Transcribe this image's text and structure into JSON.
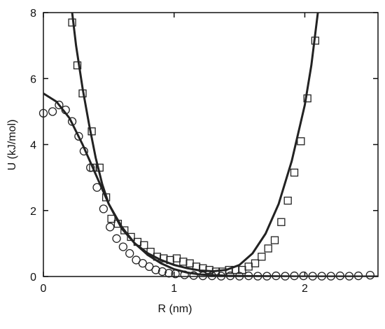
{
  "chart_data": {
    "type": "scatter",
    "xlabel": "R (nm)",
    "ylabel": "U  (kJ/mol)",
    "xlim": [
      0,
      2.56
    ],
    "ylim": [
      0,
      8
    ],
    "xticks": [
      0,
      1,
      2
    ],
    "yticks": [
      0,
      2,
      4,
      6,
      8
    ],
    "series": [
      {
        "kind": "scatter",
        "marker": "square",
        "color": "#222222",
        "x": [
          0.22,
          0.26,
          0.3,
          0.37,
          0.38,
          0.43,
          0.48,
          0.52,
          0.57,
          0.62,
          0.67,
          0.72,
          0.77,
          0.82,
          0.87,
          0.92,
          0.97,
          1.02,
          1.07,
          1.12,
          1.17,
          1.22,
          1.27,
          1.32,
          1.37,
          1.42,
          1.47,
          1.52,
          1.57,
          1.62,
          1.67,
          1.72,
          1.77,
          1.82,
          1.87,
          1.92,
          1.97,
          2.02,
          2.08
        ],
        "y": [
          7.7,
          6.4,
          5.55,
          4.4,
          3.3,
          3.3,
          2.4,
          1.75,
          1.6,
          1.4,
          1.2,
          1.05,
          0.95,
          0.75,
          0.6,
          0.55,
          0.5,
          0.55,
          0.45,
          0.4,
          0.3,
          0.25,
          0.2,
          0.15,
          0.15,
          0.2,
          0.2,
          0.2,
          0.3,
          0.4,
          0.6,
          0.85,
          1.1,
          1.65,
          2.3,
          3.15,
          4.1,
          5.4,
          7.15
        ]
      },
      {
        "kind": "scatter",
        "marker": "circle",
        "color": "#222222",
        "x": [
          0,
          0.07,
          0.12,
          0.17,
          0.22,
          0.27,
          0.31,
          0.36,
          0.41,
          0.46,
          0.51,
          0.56,
          0.61,
          0.66,
          0.71,
          0.76,
          0.81,
          0.86,
          0.91,
          0.96,
          1.01,
          1.08,
          1.15,
          1.22,
          1.29,
          1.36,
          1.43,
          1.5,
          1.57,
          1.64,
          1.71,
          1.78,
          1.85,
          1.92,
          1.99,
          2.06,
          2.13,
          2.2,
          2.27,
          2.34,
          2.41,
          2.5
        ],
        "y": [
          4.95,
          5.0,
          5.2,
          5.05,
          4.7,
          4.25,
          3.8,
          3.3,
          2.7,
          2.05,
          1.5,
          1.15,
          0.9,
          0.7,
          0.5,
          0.4,
          0.3,
          0.2,
          0.15,
          0.1,
          0.08,
          0.05,
          0.03,
          0.02,
          0.02,
          0.01,
          0.02,
          0.01,
          0.02,
          0.01,
          0.01,
          0.02,
          0.01,
          0.02,
          0.02,
          0.01,
          0.01,
          0.01,
          0.02,
          0.01,
          0.02,
          0.04
        ]
      },
      {
        "kind": "line",
        "color": "#222222",
        "x": [
          0,
          0.1,
          0.2,
          0.3,
          0.4,
          0.5,
          0.6,
          0.7,
          0.8,
          0.9,
          1.0,
          1.1,
          1.2,
          1.4,
          1.6,
          2.0,
          2.56
        ],
        "y": [
          5.55,
          5.3,
          4.8,
          4.0,
          3.1,
          2.2,
          1.5,
          1.0,
          0.65,
          0.4,
          0.22,
          0.12,
          0.06,
          0.02,
          0.01,
          0,
          0
        ]
      },
      {
        "kind": "line",
        "color": "#222222",
        "x": [
          0.22,
          0.25,
          0.3,
          0.35,
          0.4,
          0.45,
          0.5,
          0.6,
          0.7,
          0.8,
          0.9,
          1.0,
          1.1,
          1.2,
          1.3,
          1.4,
          1.5,
          1.6,
          1.7,
          1.8,
          1.9,
          2.0,
          2.05,
          2.1
        ],
        "y": [
          8.0,
          7.0,
          5.7,
          4.6,
          3.6,
          2.8,
          2.2,
          1.45,
          1.0,
          0.7,
          0.5,
          0.35,
          0.25,
          0.18,
          0.16,
          0.2,
          0.35,
          0.7,
          1.3,
          2.2,
          3.5,
          5.2,
          6.4,
          8.0
        ]
      }
    ]
  }
}
